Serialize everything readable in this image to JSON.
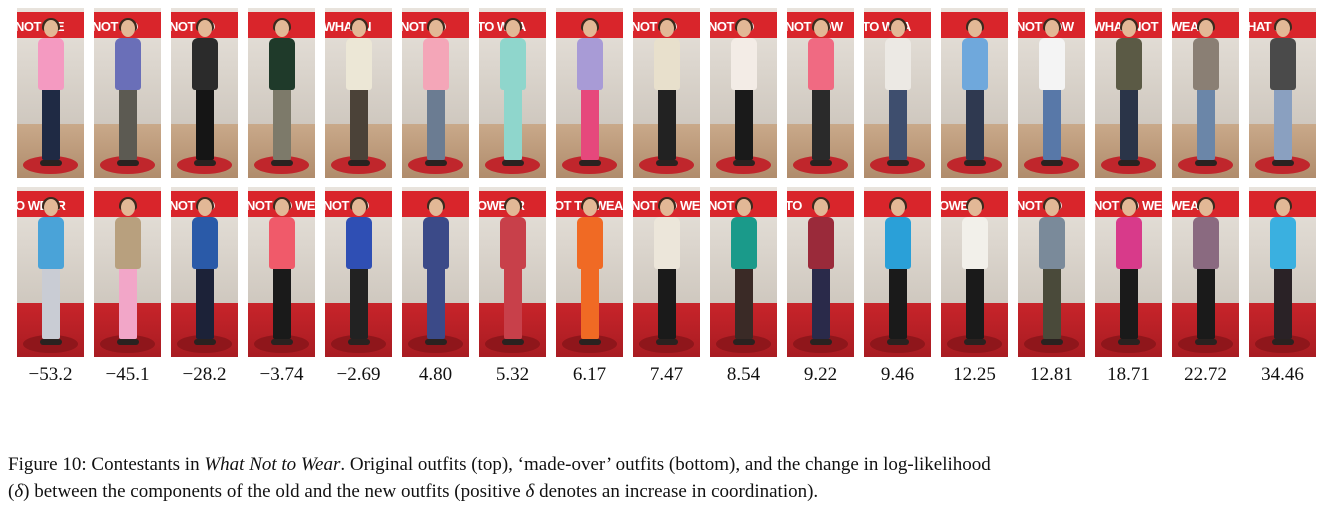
{
  "figure": {
    "top_row": [
      {
        "banner": "NOT WE",
        "top": "#f49ac1",
        "bottom": "#1f2a44"
      },
      {
        "banner": "NOT TO",
        "top": "#6a6fb8",
        "bottom": "#5c5a52"
      },
      {
        "banner": "NOT TO",
        "top": "#2b2b2b",
        "bottom": "#151515"
      },
      {
        "banner": "",
        "top": "#1f3a2a",
        "bottom": "#7d7a6a"
      },
      {
        "banner": "WHAT N",
        "top": "#ece7d6",
        "bottom": "#4b4238"
      },
      {
        "banner": "NOT TO",
        "top": "#f4a6b8",
        "bottom": "#6b7c92"
      },
      {
        "banner": "TO WEA",
        "top": "#8fd6cc",
        "bottom": "#8fd6cc"
      },
      {
        "banner": "",
        "top": "#a89bd6",
        "bottom": "#e6487c"
      },
      {
        "banner": "NOT TO",
        "top": "#e8e0cc",
        "bottom": "#222222"
      },
      {
        "banner": "NOT TO",
        "top": "#f3ece6",
        "bottom": "#1a1a1a"
      },
      {
        "banner": "NOT TOW",
        "top": "#f06a82",
        "bottom": "#2a2a2a"
      },
      {
        "banner": "TO WEA",
        "top": "#ece9e4",
        "bottom": "#3e4e6e"
      },
      {
        "banner": "",
        "top": "#6fa8dc",
        "bottom": "#2f3950"
      },
      {
        "banner": "NOT TOW",
        "top": "#f4f4f4",
        "bottom": "#5878a8"
      },
      {
        "banner": "WHAT NOT",
        "top": "#5b5a45",
        "bottom": "#2a3448"
      },
      {
        "banner": "WEAR",
        "top": "#8a7f74",
        "bottom": "#6b86a8"
      },
      {
        "banner": "HAT N",
        "top": "#4a4a4a",
        "bottom": "#8aa0c0"
      }
    ],
    "bottom_row": [
      {
        "banner": "O WEAR",
        "top": "#4aa3d8",
        "bottom": "#c9ccd4"
      },
      {
        "banner": "",
        "top": "#b8a07e",
        "bottom": "#f2a6c8"
      },
      {
        "banner": "NOT TO",
        "top": "#2a5aa8",
        "bottom": "#1c2238"
      },
      {
        "banner": "NOT TO WE",
        "top": "#f05a6a",
        "bottom": "#1a1a1a"
      },
      {
        "banner": "NOT TO",
        "top": "#2f4fb4",
        "bottom": "#222222"
      },
      {
        "banner": "",
        "top": "#3b4a88",
        "bottom": "#3b4a88"
      },
      {
        "banner": "OWEAR",
        "top": "#c8404a",
        "bottom": "#c8404a"
      },
      {
        "banner": "OT TO WEA",
        "top": "#f06a24",
        "bottom": "#f06a24"
      },
      {
        "banner": "NOT TO WE",
        "top": "#ece6da",
        "bottom": "#1a1a1a"
      },
      {
        "banner": "NOT",
        "top": "#1a9a8a",
        "bottom": "#3a2a26"
      },
      {
        "banner": "TO",
        "top": "#9a2a3a",
        "bottom": "#2a2a4a"
      },
      {
        "banner": "",
        "top": "#2aa0d8",
        "bottom": "#1a1a1a"
      },
      {
        "banner": "OWEA",
        "top": "#f2f0ea",
        "bottom": "#1a1a1a"
      },
      {
        "banner": "NOT TO",
        "top": "#7a8a9a",
        "bottom": "#4a4a3a"
      },
      {
        "banner": "NOT TO WEA",
        "top": "#d83a8a",
        "bottom": "#1a1a1a"
      },
      {
        "banner": "WEAR",
        "top": "#8a6a80",
        "bottom": "#1a1a1a"
      },
      {
        "banner": "",
        "top": "#3ab0e0",
        "bottom": "#2a2226"
      }
    ],
    "deltas": [
      "−53.2",
      "−45.1",
      "−28.2",
      "−3.74",
      "−2.69",
      "4.80",
      "5.32",
      "6.17",
      "7.47",
      "8.54",
      "9.22",
      "9.46",
      "12.25",
      "12.81",
      "18.71",
      "22.72",
      "34.46"
    ]
  },
  "caption": {
    "label": "Figure 10:",
    "text_a": " Contestants in ",
    "show_title": "What Not to Wear",
    "text_b": ". Original outfits (top), ‘made-over’ outfits (bottom), and the change in log-likelihood",
    "line2_a": "(",
    "delta_symbol": "δ",
    "line2_b": ") between the components of the old and the new outfits (positive ",
    "delta_symbol_2": "δ",
    "line2_c": " denotes an increase in coordination)."
  }
}
